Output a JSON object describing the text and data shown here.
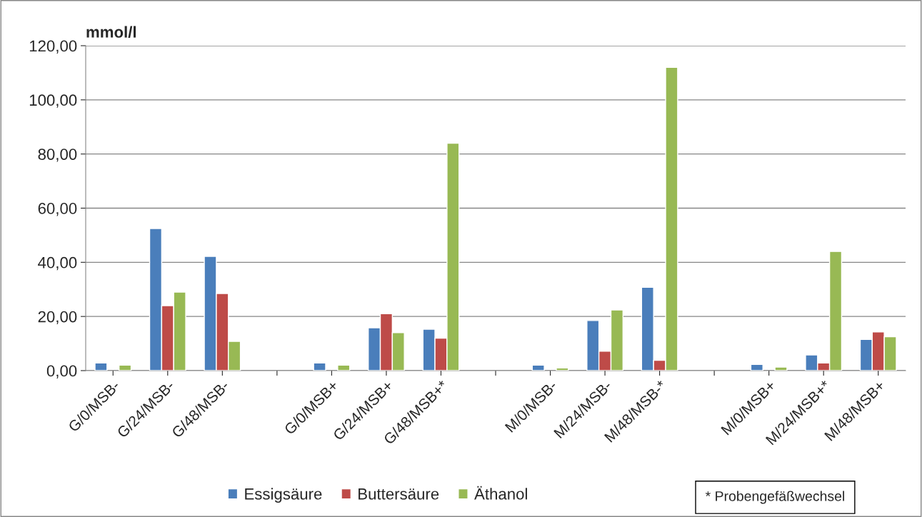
{
  "chart_data": {
    "type": "bar",
    "ylabel": "mmol/l",
    "categories": [
      "G/0/MSB-",
      "G/24/MSB-",
      "G/48/MSB-",
      null,
      "G/0/MSB+",
      "G/24/MSB+",
      "G/48/MSB+*",
      null,
      "M/0/MSB-",
      "M/24/MSB-",
      "M/48/MSB-*",
      null,
      "M/0/MSB+",
      "M/24/MSB+*",
      "M/48/MSB+"
    ],
    "series": [
      {
        "name": "Essigsäure",
        "color": "#4a7ebb",
        "values": [
          2.8,
          52.5,
          42.2,
          null,
          2.8,
          15.8,
          15.3,
          null,
          2.0,
          18.5,
          30.8,
          null,
          2.3,
          5.8,
          11.5
        ]
      },
      {
        "name": "Buttersäure",
        "color": "#be4b48",
        "values": [
          null,
          24.0,
          28.5,
          null,
          null,
          21.0,
          12.0,
          null,
          null,
          7.2,
          3.8,
          null,
          null,
          2.8,
          14.3
        ]
      },
      {
        "name": "Äthanol",
        "color": "#98b954",
        "values": [
          2.0,
          29.0,
          10.8,
          null,
          2.0,
          14.0,
          84.0,
          null,
          1.0,
          22.4,
          112.0,
          null,
          1.3,
          44.0,
          12.5
        ]
      }
    ],
    "ylim": [
      0,
      120
    ],
    "yticks": [
      {
        "value": 0,
        "label": "0,00"
      },
      {
        "value": 20,
        "label": "20,00"
      },
      {
        "value": 40,
        "label": "40,00"
      },
      {
        "value": 60,
        "label": "60,00"
      },
      {
        "value": 80,
        "label": "80,00"
      },
      {
        "value": 100,
        "label": "100,00"
      },
      {
        "value": 120,
        "label": "120,00"
      }
    ],
    "grid": "y",
    "legend": "bottom",
    "annotations": [
      "* Probengefäßwechsel"
    ]
  }
}
